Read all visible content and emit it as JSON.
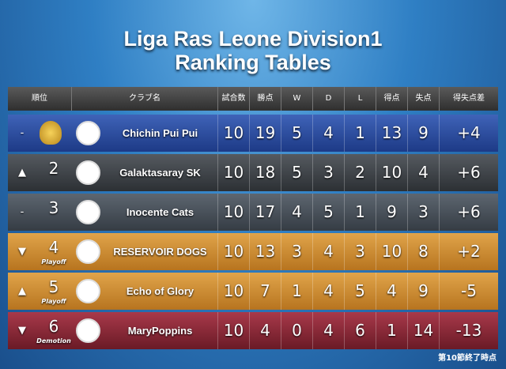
{
  "header": {
    "title_line1": "Liga Ras Leone Division1",
    "title_line2": "Ranking Tables"
  },
  "table": {
    "columns": [
      "順位",
      "クラブ名",
      "試合数",
      "勝点",
      "W",
      "D",
      "L",
      "得点",
      "失点",
      "得失点差"
    ],
    "rows": [
      {
        "change": "-",
        "rank": null,
        "note": null,
        "club": "Chichin Pui Pui",
        "played": 10,
        "points": 19,
        "w": 5,
        "d": 4,
        "l": 1,
        "gf": 13,
        "ga": 9,
        "gd": "+4"
      },
      {
        "change": "▲",
        "rank": 2,
        "note": null,
        "club": "Galaktasaray SK",
        "played": 10,
        "points": 18,
        "w": 5,
        "d": 3,
        "l": 2,
        "gf": 10,
        "ga": 4,
        "gd": "+6"
      },
      {
        "change": "-",
        "rank": 3,
        "note": null,
        "club": "Inocente Cats",
        "played": 10,
        "points": 17,
        "w": 4,
        "d": 5,
        "l": 1,
        "gf": 9,
        "ga": 3,
        "gd": "+6"
      },
      {
        "change": "▼",
        "rank": 4,
        "note": "Playoff",
        "club": "RESERVOIR DOGS",
        "played": 10,
        "points": 13,
        "w": 3,
        "d": 4,
        "l": 3,
        "gf": 10,
        "ga": 8,
        "gd": "+2"
      },
      {
        "change": "▲",
        "rank": 5,
        "note": "Playoff",
        "club": "Echo of Glory",
        "played": 10,
        "points": 7,
        "w": 1,
        "d": 4,
        "l": 5,
        "gf": 4,
        "ga": 9,
        "gd": "-5"
      },
      {
        "change": "▼",
        "rank": 6,
        "note": "Demotion",
        "club": "MaryPoppins",
        "played": 10,
        "points": 4,
        "w": 0,
        "d": 4,
        "l": 6,
        "gf": 1,
        "ga": 14,
        "gd": "-13"
      }
    ]
  },
  "footer": "第10節終了時点"
}
